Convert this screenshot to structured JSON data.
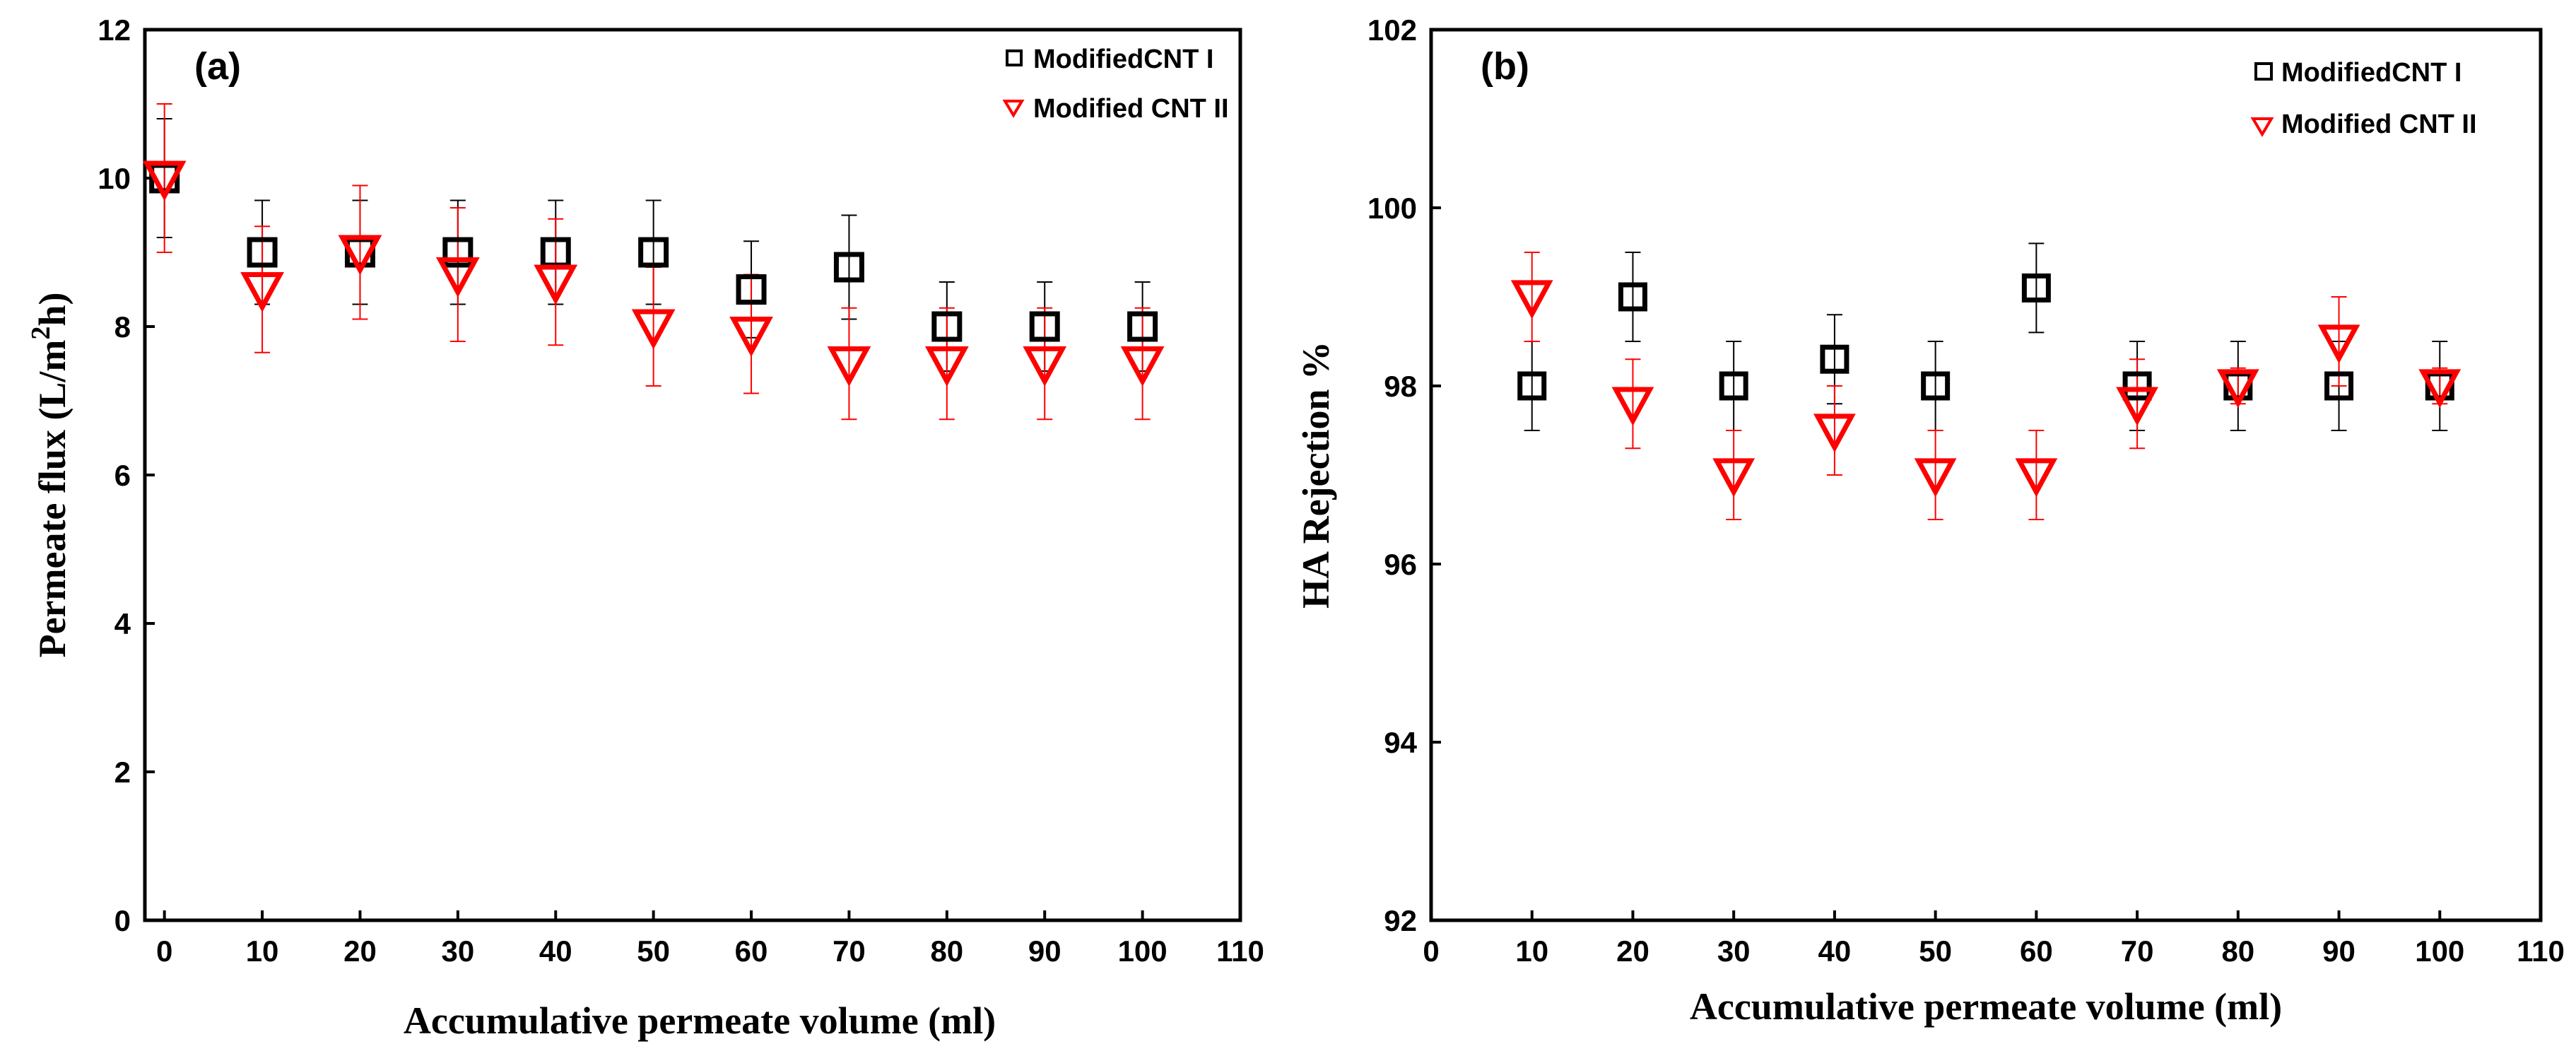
{
  "chart_data": [
    {
      "type": "scatter",
      "panel_label": "(a)",
      "xlabel": "Accumulative permeate volume (ml)",
      "ylabel_main": "Permeate flux (L/m",
      "ylabel_sup": "2",
      "ylabel_tail": "h)",
      "xlim": [
        -2,
        110
      ],
      "ylim": [
        0,
        12
      ],
      "xticks": [
        0,
        10,
        20,
        30,
        40,
        50,
        60,
        70,
        80,
        90,
        100,
        110
      ],
      "yticks": [
        0,
        2,
        4,
        6,
        8,
        10,
        12
      ],
      "xtick_labels": [
        "0",
        "10",
        "20",
        "30",
        "40",
        "50",
        "60",
        "70",
        "80",
        "90",
        "100",
        "110"
      ],
      "ytick_labels": [
        "0",
        "2",
        "4",
        "6",
        "8",
        "10",
        "12"
      ],
      "legend_position": "top-right",
      "series": [
        {
          "name": "ModifiedCNT I",
          "marker": "square",
          "color": "#000000",
          "x": [
            0,
            10,
            20,
            30,
            40,
            50,
            60,
            70,
            80,
            90,
            100
          ],
          "y": [
            10.0,
            9.0,
            9.0,
            9.0,
            9.0,
            9.0,
            8.5,
            8.8,
            8.0,
            8.0,
            8.0
          ],
          "err": [
            0.8,
            0.7,
            0.7,
            0.7,
            0.7,
            0.7,
            0.65,
            0.7,
            0.6,
            0.6,
            0.6
          ]
        },
        {
          "name": "Modified CNT II",
          "marker": "triangle-down",
          "color": "#ff0000",
          "x": [
            0,
            10,
            20,
            30,
            40,
            50,
            60,
            70,
            80,
            90,
            100
          ],
          "y": [
            10.0,
            8.5,
            9.0,
            8.7,
            8.6,
            8.0,
            7.9,
            7.5,
            7.5,
            7.5,
            7.5
          ],
          "err": [
            1.0,
            0.85,
            0.9,
            0.9,
            0.85,
            0.8,
            0.8,
            0.75,
            0.75,
            0.75,
            0.75
          ]
        }
      ]
    },
    {
      "type": "scatter",
      "panel_label": "(b)",
      "xlabel": "Accumulative permeate volume (ml)",
      "ylabel_main": "HA Rejection %",
      "ylabel_sup": "",
      "ylabel_tail": "",
      "xlim": [
        0,
        110
      ],
      "ylim": [
        92,
        102
      ],
      "xticks": [
        0,
        10,
        20,
        30,
        40,
        50,
        60,
        70,
        80,
        90,
        100,
        110
      ],
      "yticks": [
        92,
        94,
        96,
        98,
        100,
        102
      ],
      "xtick_labels": [
        "0",
        "10",
        "20",
        "30",
        "40",
        "50",
        "60",
        "70",
        "80",
        "90",
        "100",
        "110"
      ],
      "ytick_labels": [
        "92",
        "94",
        "96",
        "98",
        "100",
        "102"
      ],
      "legend_position": "top-right",
      "series": [
        {
          "name": "ModifiedCNT I",
          "marker": "square",
          "color": "#000000",
          "x": [
            10,
            20,
            30,
            40,
            50,
            60,
            70,
            80,
            90,
            100
          ],
          "y": [
            98.0,
            99.0,
            98.0,
            98.3,
            98.0,
            99.1,
            98.0,
            98.0,
            98.0,
            98.0
          ],
          "err": [
            0.5,
            0.5,
            0.5,
            0.5,
            0.5,
            0.5,
            0.5,
            0.5,
            0.5,
            0.5
          ]
        },
        {
          "name": "Modified CNT II",
          "marker": "triangle-down",
          "color": "#ff0000",
          "x": [
            10,
            20,
            30,
            40,
            50,
            60,
            70,
            80,
            90,
            100
          ],
          "y": [
            99.0,
            97.8,
            97.0,
            97.5,
            97.0,
            97.0,
            97.8,
            98.0,
            98.5,
            98.0
          ],
          "err": [
            0.5,
            0.5,
            0.5,
            0.5,
            0.5,
            0.5,
            0.5,
            0.2,
            0.5,
            0.2
          ]
        }
      ]
    }
  ]
}
